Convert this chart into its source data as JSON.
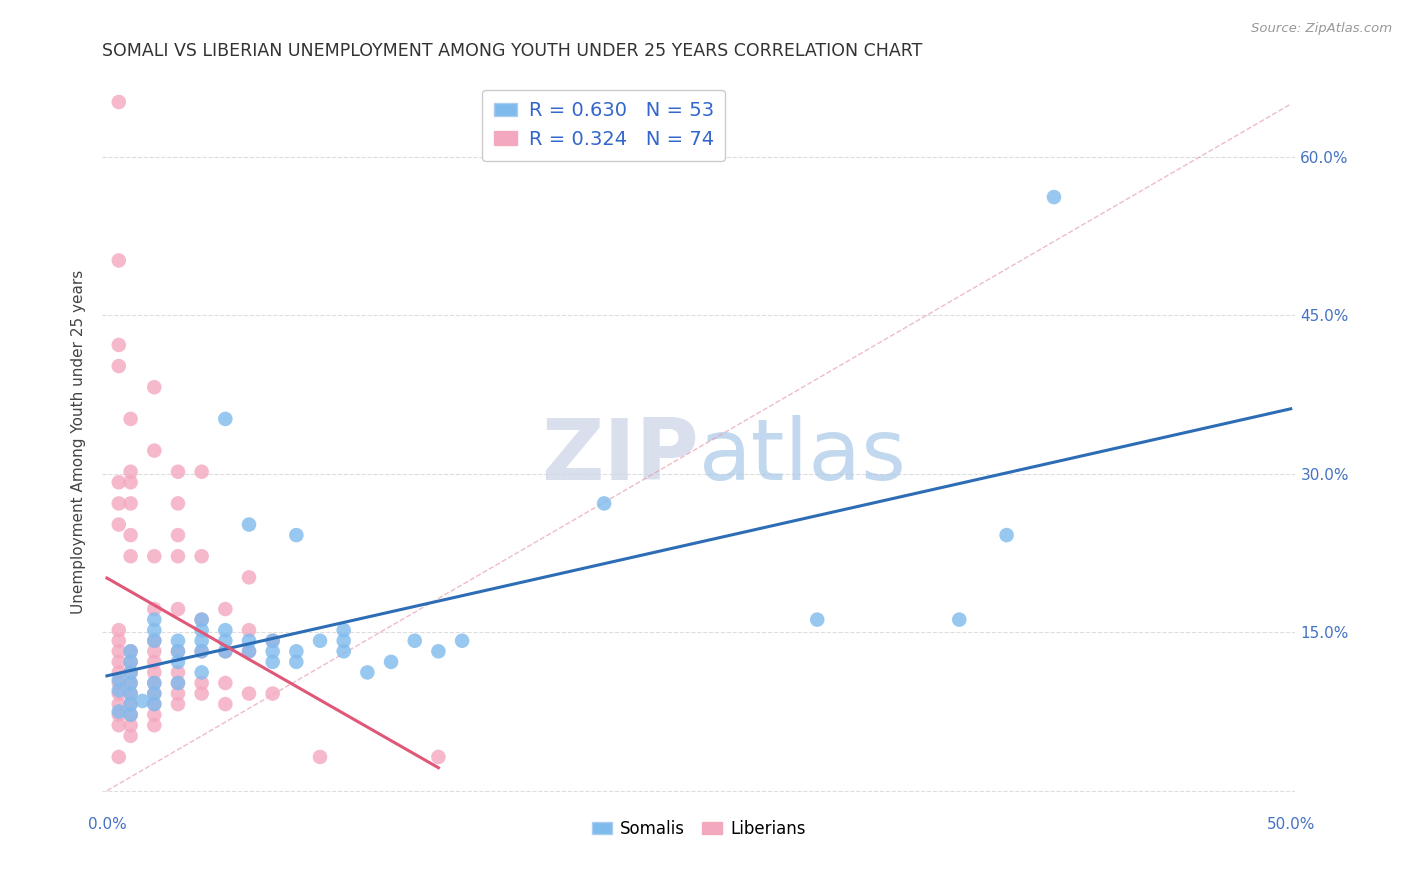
{
  "title": "SOMALI VS LIBERIAN UNEMPLOYMENT AMONG YOUTH UNDER 25 YEARS CORRELATION CHART",
  "source": "Source: ZipAtlas.com",
  "xlabel": "",
  "ylabel": "Unemployment Among Youth under 25 years",
  "xlim": [
    0.0,
    0.5
  ],
  "ylim": [
    -0.02,
    0.68
  ],
  "xticks": [
    0.0,
    0.1,
    0.2,
    0.3,
    0.4,
    0.5
  ],
  "xtick_labels": [
    "0.0%",
    "",
    "",
    "",
    "",
    "50.0%"
  ],
  "ytick_labels": [
    "",
    "15.0%",
    "30.0%",
    "45.0%",
    "60.0%"
  ],
  "yticks": [
    0.0,
    0.15,
    0.3,
    0.45,
    0.6
  ],
  "somali_color": "#7fbaed",
  "liberian_color": "#f4a8c0",
  "somali_line_color": "#2d6db5",
  "liberian_line_color": "#e05878",
  "diagonal_color": "#e8a0b0",
  "legend_R_somali": "R = 0.630",
  "legend_N_somali": "N = 53",
  "legend_R_liberian": "R = 0.324",
  "legend_N_liberian": "N = 74",
  "watermark_zip": "ZIP",
  "watermark_atlas": "atlas",
  "somali_data": [
    [
      0.005,
      0.075
    ],
    [
      0.005,
      0.095
    ],
    [
      0.005,
      0.105
    ],
    [
      0.01,
      0.082
    ],
    [
      0.01,
      0.092
    ],
    [
      0.01,
      0.102
    ],
    [
      0.01,
      0.112
    ],
    [
      0.01,
      0.122
    ],
    [
      0.01,
      0.132
    ],
    [
      0.01,
      0.072
    ],
    [
      0.015,
      0.085
    ],
    [
      0.02,
      0.092
    ],
    [
      0.02,
      0.102
    ],
    [
      0.02,
      0.082
    ],
    [
      0.02,
      0.142
    ],
    [
      0.02,
      0.162
    ],
    [
      0.02,
      0.152
    ],
    [
      0.03,
      0.122
    ],
    [
      0.03,
      0.132
    ],
    [
      0.03,
      0.102
    ],
    [
      0.03,
      0.142
    ],
    [
      0.04,
      0.132
    ],
    [
      0.04,
      0.142
    ],
    [
      0.04,
      0.152
    ],
    [
      0.04,
      0.162
    ],
    [
      0.04,
      0.112
    ],
    [
      0.05,
      0.142
    ],
    [
      0.05,
      0.132
    ],
    [
      0.05,
      0.152
    ],
    [
      0.05,
      0.352
    ],
    [
      0.06,
      0.132
    ],
    [
      0.06,
      0.142
    ],
    [
      0.06,
      0.252
    ],
    [
      0.07,
      0.122
    ],
    [
      0.07,
      0.142
    ],
    [
      0.07,
      0.132
    ],
    [
      0.08,
      0.132
    ],
    [
      0.08,
      0.122
    ],
    [
      0.08,
      0.242
    ],
    [
      0.09,
      0.142
    ],
    [
      0.1,
      0.132
    ],
    [
      0.1,
      0.152
    ],
    [
      0.1,
      0.142
    ],
    [
      0.11,
      0.112
    ],
    [
      0.12,
      0.122
    ],
    [
      0.13,
      0.142
    ],
    [
      0.14,
      0.132
    ],
    [
      0.15,
      0.142
    ],
    [
      0.21,
      0.272
    ],
    [
      0.3,
      0.162
    ],
    [
      0.36,
      0.162
    ],
    [
      0.38,
      0.242
    ],
    [
      0.4,
      0.562
    ]
  ],
  "liberian_data": [
    [
      0.005,
      0.032
    ],
    [
      0.005,
      0.062
    ],
    [
      0.005,
      0.072
    ],
    [
      0.005,
      0.082
    ],
    [
      0.005,
      0.092
    ],
    [
      0.005,
      0.102
    ],
    [
      0.005,
      0.112
    ],
    [
      0.005,
      0.122
    ],
    [
      0.005,
      0.132
    ],
    [
      0.005,
      0.142
    ],
    [
      0.005,
      0.152
    ],
    [
      0.005,
      0.252
    ],
    [
      0.005,
      0.272
    ],
    [
      0.005,
      0.292
    ],
    [
      0.005,
      0.402
    ],
    [
      0.005,
      0.422
    ],
    [
      0.005,
      0.502
    ],
    [
      0.005,
      0.652
    ],
    [
      0.01,
      0.052
    ],
    [
      0.01,
      0.062
    ],
    [
      0.01,
      0.072
    ],
    [
      0.01,
      0.082
    ],
    [
      0.01,
      0.092
    ],
    [
      0.01,
      0.102
    ],
    [
      0.01,
      0.112
    ],
    [
      0.01,
      0.122
    ],
    [
      0.01,
      0.132
    ],
    [
      0.01,
      0.222
    ],
    [
      0.01,
      0.242
    ],
    [
      0.01,
      0.272
    ],
    [
      0.01,
      0.292
    ],
    [
      0.01,
      0.302
    ],
    [
      0.01,
      0.352
    ],
    [
      0.02,
      0.062
    ],
    [
      0.02,
      0.072
    ],
    [
      0.02,
      0.082
    ],
    [
      0.02,
      0.092
    ],
    [
      0.02,
      0.102
    ],
    [
      0.02,
      0.112
    ],
    [
      0.02,
      0.122
    ],
    [
      0.02,
      0.132
    ],
    [
      0.02,
      0.142
    ],
    [
      0.02,
      0.172
    ],
    [
      0.02,
      0.222
    ],
    [
      0.02,
      0.322
    ],
    [
      0.02,
      0.382
    ],
    [
      0.03,
      0.082
    ],
    [
      0.03,
      0.092
    ],
    [
      0.03,
      0.102
    ],
    [
      0.03,
      0.112
    ],
    [
      0.03,
      0.132
    ],
    [
      0.03,
      0.172
    ],
    [
      0.03,
      0.222
    ],
    [
      0.03,
      0.242
    ],
    [
      0.03,
      0.272
    ],
    [
      0.03,
      0.302
    ],
    [
      0.04,
      0.092
    ],
    [
      0.04,
      0.102
    ],
    [
      0.04,
      0.132
    ],
    [
      0.04,
      0.162
    ],
    [
      0.04,
      0.222
    ],
    [
      0.04,
      0.302
    ],
    [
      0.05,
      0.082
    ],
    [
      0.05,
      0.102
    ],
    [
      0.05,
      0.132
    ],
    [
      0.05,
      0.172
    ],
    [
      0.06,
      0.092
    ],
    [
      0.06,
      0.132
    ],
    [
      0.06,
      0.152
    ],
    [
      0.06,
      0.202
    ],
    [
      0.07,
      0.092
    ],
    [
      0.07,
      0.142
    ],
    [
      0.09,
      0.032
    ],
    [
      0.14,
      0.032
    ]
  ],
  "background_color": "#ffffff",
  "grid_color": "#dddddd"
}
